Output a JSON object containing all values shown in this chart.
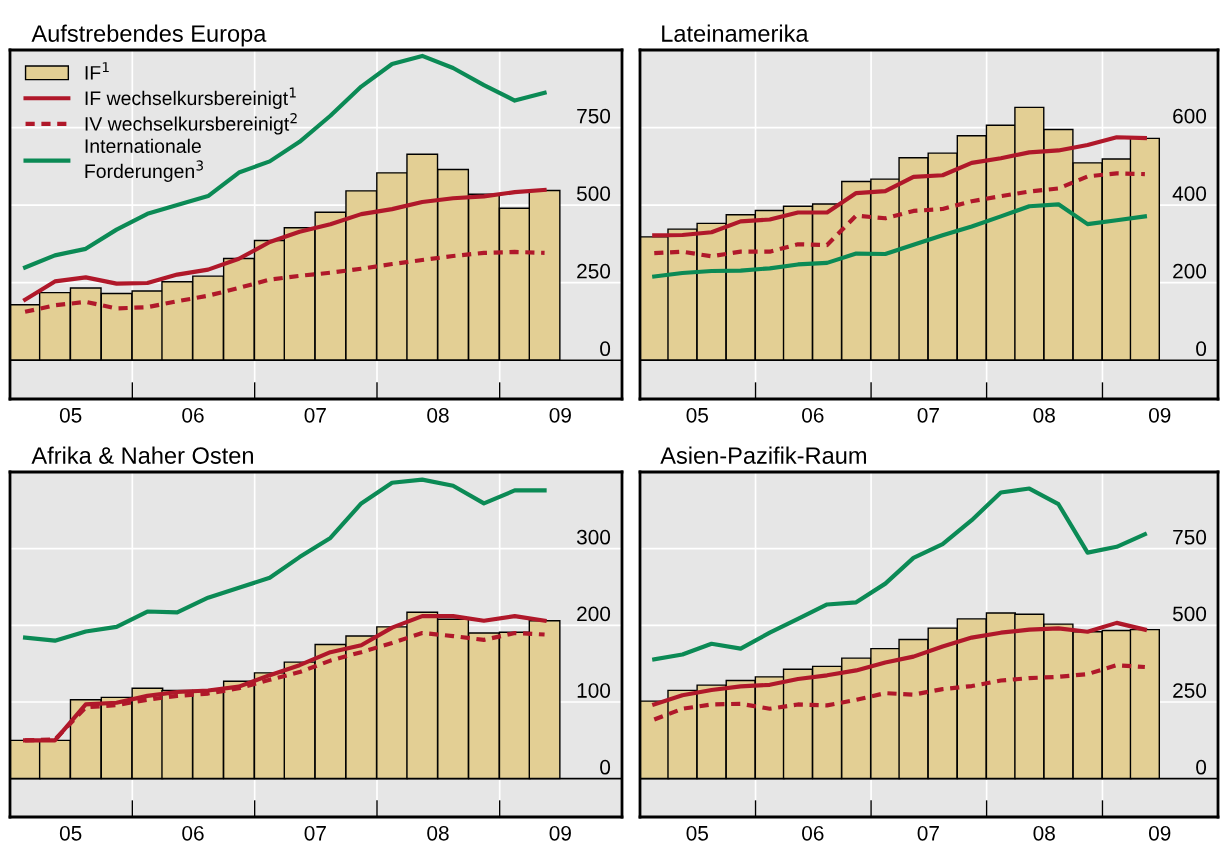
{
  "chart_data": [
    {
      "type": "bar",
      "title": "Aufstrebendes Europa",
      "x": [
        "2005-02-15",
        "2005-05-15",
        "2005-08-15",
        "2005-11-15",
        "2006-02-15",
        "2006-05-15",
        "2006-08-15",
        "2006-11-15",
        "2007-02-15",
        "2007-05-15",
        "2007-08-15",
        "2007-11-15",
        "2008-02-15",
        "2008-05-15",
        "2008-08-15",
        "2008-11-15",
        "2009-02-15",
        "2009-05-15"
      ],
      "xlim": [
        "2005-01-01",
        "2010-01-01"
      ],
      "xticks": [
        {
          "value": "2005-07-01",
          "label": "05"
        },
        {
          "value": "2006-01-01",
          "label": null
        },
        {
          "value": "2006-07-01",
          "label": "06"
        },
        {
          "value": "2007-01-01",
          "label": null
        },
        {
          "value": "2007-07-01",
          "label": "07"
        },
        {
          "value": "2008-01-01",
          "label": null
        },
        {
          "value": "2008-07-01",
          "label": "08"
        },
        {
          "value": "2009-01-01",
          "label": null
        },
        {
          "value": "2009-07-01",
          "label": "09"
        }
      ],
      "ylim": [
        -125,
        1000
      ],
      "yticks": [
        0,
        250,
        500,
        750
      ],
      "grid": true,
      "legend": "top left",
      "ref_lines": [
        {
          "axis": "y",
          "value": 0,
          "color": "#000000"
        }
      ],
      "series": [
        {
          "name": "IF$^{1}$",
          "color": "#e3cf94",
          "values": [
            179,
            218,
            233,
            215,
            223,
            253,
            271,
            328,
            386,
            427,
            477,
            546,
            604,
            664,
            615,
            535,
            490,
            547
          ]
        },
        {
          "name": "IF wechselkursbereinigt$^{1}$",
          "type": "line",
          "line_style": "solid",
          "color": "#b0182a",
          "values": [
            195,
            254,
            267,
            247,
            249,
            276,
            292,
            327,
            381,
            414,
            438,
            471,
            487,
            510,
            522,
            528,
            542,
            549
          ]
        },
        {
          "name": "IV wechselkursbereinigt$^{2}$",
          "type": "line",
          "line_style": "dashed",
          "color": "#b0182a",
          "values": [
            156,
            177,
            188,
            167,
            171,
            190,
            208,
            233,
            260,
            272,
            282,
            295,
            310,
            323,
            336,
            346,
            349,
            346
          ]
        },
        {
          "name": "Internationale\nForderungen$^{3}$",
          "type": "line",
          "line_style": "solid",
          "color": "#0b8a55",
          "values": [
            299,
            338,
            359,
            421,
            472,
            500,
            529,
            605,
            641,
            704,
            788,
            882,
            955,
            981,
            942,
            887,
            837,
            862
          ]
        }
      ]
    },
    {
      "type": "bar",
      "title": "Lateinamerika",
      "x": [
        "2005-02-15",
        "2005-05-15",
        "2005-08-15",
        "2005-11-15",
        "2006-02-15",
        "2006-05-15",
        "2006-08-15",
        "2006-11-15",
        "2007-02-15",
        "2007-05-15",
        "2007-08-15",
        "2007-11-15",
        "2008-02-15",
        "2008-05-15",
        "2008-08-15",
        "2008-11-15",
        "2009-02-15",
        "2009-05-15"
      ],
      "xlim": [
        "2005-01-01",
        "2010-01-01"
      ],
      "xticks": [
        {
          "value": "2005-07-01",
          "label": "05"
        },
        {
          "value": "2006-01-01",
          "label": null
        },
        {
          "value": "2006-07-01",
          "label": "06"
        },
        {
          "value": "2007-01-01",
          "label": null
        },
        {
          "value": "2007-07-01",
          "label": "07"
        },
        {
          "value": "2008-01-01",
          "label": null
        },
        {
          "value": "2008-07-01",
          "label": "08"
        },
        {
          "value": "2009-01-01",
          "label": null
        },
        {
          "value": "2009-07-01",
          "label": "09"
        }
      ],
      "ylim": [
        -100,
        800
      ],
      "yticks": [
        0,
        200,
        400,
        600
      ],
      "grid": true,
      "ref_lines": [
        {
          "axis": "y",
          "value": 0,
          "color": "#000000"
        }
      ],
      "series": [
        {
          "color": "#e3cf94",
          "values": [
            318,
            338,
            353,
            375,
            386,
            397,
            403,
            461,
            467,
            522,
            534,
            579,
            606,
            652,
            595,
            509,
            519,
            572
          ]
        },
        {
          "type": "line",
          "line_style": "solid",
          "color": "#b0182a",
          "values": [
            322,
            323,
            330,
            358,
            363,
            381,
            381,
            431,
            436,
            473,
            477,
            509,
            521,
            536,
            541,
            555,
            575,
            573
          ]
        },
        {
          "type": "line",
          "line_style": "dashed",
          "color": "#b0182a",
          "values": [
            276,
            280,
            268,
            280,
            280,
            299,
            297,
            373,
            366,
            385,
            390,
            410,
            423,
            435,
            443,
            474,
            482,
            480
          ]
        },
        {
          "type": "line",
          "line_style": "solid",
          "color": "#0b8a55",
          "values": [
            216,
            225,
            230,
            231,
            237,
            247,
            251,
            275,
            274,
            298,
            322,
            345,
            371,
            397,
            402,
            351,
            361,
            371
          ]
        }
      ]
    },
    {
      "type": "bar",
      "title": "Afrika & Naher Osten",
      "x": [
        "2005-02-15",
        "2005-05-15",
        "2005-08-15",
        "2005-11-15",
        "2006-02-15",
        "2006-05-15",
        "2006-08-15",
        "2006-11-15",
        "2007-02-15",
        "2007-05-15",
        "2007-08-15",
        "2007-11-15",
        "2008-02-15",
        "2008-05-15",
        "2008-08-15",
        "2008-11-15",
        "2009-02-15",
        "2009-05-15"
      ],
      "xlim": [
        "2005-01-01",
        "2010-01-01"
      ],
      "xticks": [
        {
          "value": "2005-07-01",
          "label": "05"
        },
        {
          "value": "2006-01-01",
          "label": null
        },
        {
          "value": "2006-07-01",
          "label": "06"
        },
        {
          "value": "2007-01-01",
          "label": null
        },
        {
          "value": "2007-07-01",
          "label": "07"
        },
        {
          "value": "2008-01-01",
          "label": null
        },
        {
          "value": "2008-07-01",
          "label": "08"
        },
        {
          "value": "2009-01-01",
          "label": null
        },
        {
          "value": "2009-07-01",
          "label": "09"
        }
      ],
      "ylim": [
        -50,
        400
      ],
      "yticks": [
        0,
        100,
        200,
        300
      ],
      "grid": true,
      "ref_lines": [
        {
          "axis": "y",
          "value": 0,
          "color": "#000000"
        }
      ],
      "series": [
        {
          "color": "#e3cf94",
          "values": [
            50,
            50,
            103,
            106,
            118,
            115,
            115,
            127,
            138,
            152,
            175,
            186,
            198,
            217,
            208,
            190,
            191,
            206
          ]
        },
        {
          "type": "line",
          "line_style": "solid",
          "color": "#b0182a",
          "values": [
            50,
            50,
            97,
            99,
            108,
            113,
            115,
            120,
            135,
            148,
            165,
            174,
            197,
            212,
            212,
            206,
            212,
            206
          ]
        },
        {
          "type": "line",
          "line_style": "dashed",
          "color": "#b0182a",
          "values": [
            50,
            51,
            93,
            96,
            103,
            108,
            111,
            118,
            129,
            139,
            154,
            165,
            177,
            190,
            186,
            181,
            190,
            188
          ]
        },
        {
          "type": "line",
          "line_style": "solid",
          "color": "#0b8a55",
          "values": [
            184,
            180,
            192,
            198,
            218,
            217,
            236,
            249,
            262,
            289,
            314,
            359,
            386,
            390,
            382,
            359,
            376,
            376
          ]
        }
      ]
    },
    {
      "type": "bar",
      "title": "Asien-Pazifik-Raum",
      "x": [
        "2005-02-15",
        "2005-05-15",
        "2005-08-15",
        "2005-11-15",
        "2006-02-15",
        "2006-05-15",
        "2006-08-15",
        "2006-11-15",
        "2007-02-15",
        "2007-05-15",
        "2007-08-15",
        "2007-11-15",
        "2008-02-15",
        "2008-05-15",
        "2008-08-15",
        "2008-11-15",
        "2009-02-15",
        "2009-05-15"
      ],
      "xlim": [
        "2005-01-01",
        "2010-01-01"
      ],
      "xticks": [
        {
          "value": "2005-07-01",
          "label": "05"
        },
        {
          "value": "2006-01-01",
          "label": null
        },
        {
          "value": "2006-07-01",
          "label": "06"
        },
        {
          "value": "2007-01-01",
          "label": null
        },
        {
          "value": "2007-07-01",
          "label": "07"
        },
        {
          "value": "2008-01-01",
          "label": null
        },
        {
          "value": "2008-07-01",
          "label": "08"
        },
        {
          "value": "2009-01-01",
          "label": null
        },
        {
          "value": "2009-07-01",
          "label": "09"
        }
      ],
      "ylim": [
        -125,
        1000
      ],
      "yticks": [
        0,
        250,
        500,
        750
      ],
      "grid": true,
      "ref_lines": [
        {
          "axis": "y",
          "value": 0,
          "color": "#000000"
        }
      ],
      "series": [
        {
          "color": "#e3cf94",
          "values": [
            253,
            288,
            305,
            320,
            332,
            357,
            366,
            393,
            424,
            454,
            491,
            521,
            540,
            536,
            504,
            479,
            483,
            486
          ]
        },
        {
          "type": "line",
          "line_style": "solid",
          "color": "#b0182a",
          "values": [
            242,
            272,
            289,
            301,
            306,
            325,
            337,
            353,
            379,
            398,
            431,
            460,
            476,
            486,
            490,
            479,
            508,
            486
          ]
        },
        {
          "type": "line",
          "line_style": "dashed",
          "color": "#b0182a",
          "values": [
            193,
            228,
            242,
            244,
            228,
            242,
            239,
            257,
            279,
            274,
            292,
            302,
            320,
            328,
            332,
            341,
            370,
            364
          ]
        },
        {
          "type": "line",
          "line_style": "solid",
          "color": "#0b8a55",
          "values": [
            389,
            405,
            440,
            424,
            476,
            521,
            568,
            575,
            636,
            720,
            765,
            843,
            933,
            946,
            895,
            737,
            756,
            797
          ]
        }
      ]
    }
  ]
}
